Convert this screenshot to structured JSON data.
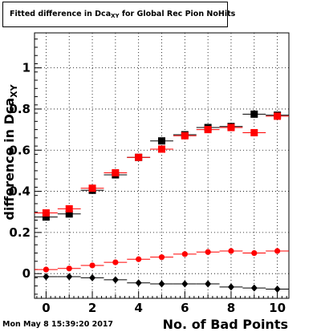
{
  "title": {
    "main": "Fitted difference in Dca",
    "sub": "XY",
    "rest": " for Global Rec Pion NoHits"
  },
  "timestamp": "Mon May  8 15:39:20 2017",
  "chart_data": {
    "type": "scatter",
    "title": "Fitted difference in Dca_XY for Global Rec Pion NoHits",
    "xlabel": "No. of Bad Points",
    "ylabel": {
      "main": "difference in Dca",
      "sub": "XY"
    },
    "xlim": [
      -0.5,
      10.5
    ],
    "ylim": [
      -0.12,
      1.17
    ],
    "xticks": [
      0,
      2,
      4,
      6,
      8,
      10
    ],
    "yticks": [
      0,
      0.2,
      0.4,
      0.6,
      0.8,
      1
    ],
    "ytick_labels": [
      "0",
      "0.2",
      "0.4",
      "0.6",
      "0.8",
      "1"
    ],
    "grid": true,
    "x": [
      0,
      1,
      2,
      3,
      4,
      5,
      6,
      7,
      8,
      9,
      10
    ],
    "series": [
      {
        "color": "#000000",
        "marker": "square",
        "values": [
          0.275,
          0.29,
          0.405,
          0.48,
          0.565,
          0.645,
          0.675,
          0.71,
          0.715,
          0.775,
          0.77
        ]
      },
      {
        "color": "#ff0000",
        "marker": "square",
        "values": [
          0.295,
          0.315,
          0.415,
          0.49,
          0.565,
          0.605,
          0.67,
          0.7,
          0.71,
          0.685,
          0.765
        ]
      },
      {
        "color": "#ff0000",
        "marker": "circle",
        "values": [
          0.02,
          0.025,
          0.04,
          0.055,
          0.07,
          0.08,
          0.095,
          0.105,
          0.11,
          0.1,
          0.11
        ]
      },
      {
        "color": "#000000",
        "marker": "diamond",
        "values": [
          -0.015,
          -0.015,
          -0.02,
          -0.03,
          -0.045,
          -0.05,
          -0.05,
          -0.05,
          -0.065,
          -0.07,
          -0.075
        ]
      }
    ]
  }
}
